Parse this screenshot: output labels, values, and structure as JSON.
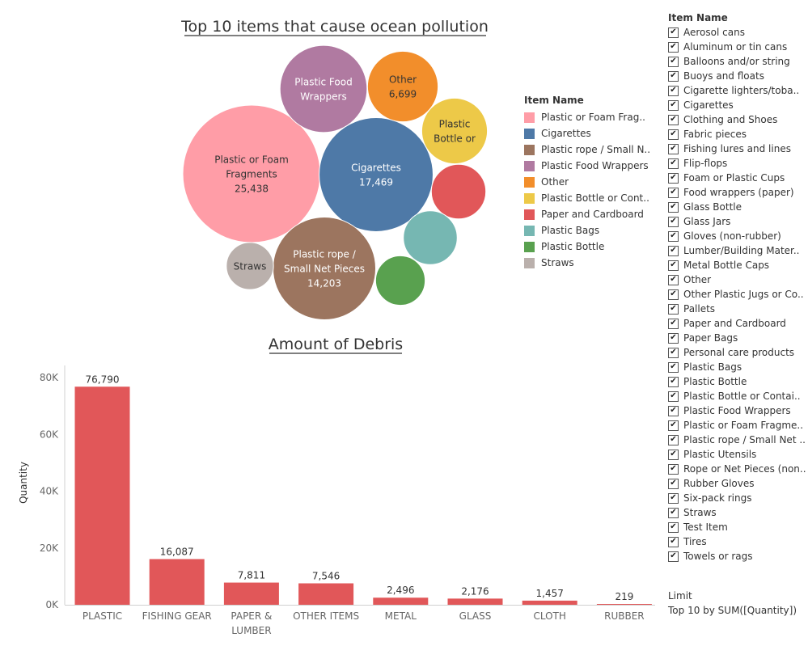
{
  "bubble_chart": {
    "title": "Top 10 items that cause ocean pollution",
    "legend_title": "Item Name",
    "legend": [
      {
        "label": "Plastic or Foam Frag..",
        "color": "#ff9da7"
      },
      {
        "label": "Cigarettes",
        "color": "#4e79a7"
      },
      {
        "label": "Plastic rope / Small N..",
        "color": "#9c755f"
      },
      {
        "label": "Plastic Food Wrappers",
        "color": "#b07aa1"
      },
      {
        "label": "Other",
        "color": "#f28e2b"
      },
      {
        "label": "Plastic Bottle or Cont..",
        "color": "#edc948"
      },
      {
        "label": "Paper and Cardboard",
        "color": "#e15759"
      },
      {
        "label": "Plastic Bags",
        "color": "#76b7b2"
      },
      {
        "label": "Plastic Bottle",
        "color": "#59a14f"
      },
      {
        "label": "Straws",
        "color": "#bab0ac"
      }
    ]
  },
  "filter": {
    "title": "Item Name",
    "check_glyph": "✔",
    "items": [
      "Aerosol cans",
      "Aluminum or tin cans",
      "Balloons and/or string",
      "Buoys and floats",
      "Cigarette lighters/toba..",
      "Cigarettes",
      "Clothing and Shoes",
      "Fabric pieces",
      "Fishing lures and lines",
      "Flip-flops",
      "Foam or Plastic Cups",
      "Food wrappers (paper)",
      "Glass Bottle",
      "Glass Jars",
      "Gloves (non-rubber)",
      "Lumber/Building Mater..",
      "Metal Bottle Caps",
      "Other",
      "Other Plastic Jugs or Co..",
      "Pallets",
      "Paper and Cardboard",
      "Paper Bags",
      "Personal care products",
      "Plastic Bags",
      "Plastic Bottle",
      "Plastic Bottle or Contai..",
      "Plastic Food Wrappers",
      "Plastic or Foam Fragme..",
      "Plastic rope / Small Net ..",
      "Plastic Utensils",
      "Rope or Net Pieces (non..",
      "Rubber Gloves",
      "Six-pack rings",
      "Straws",
      "Test Item",
      "Tires",
      "Towels or rags"
    ]
  },
  "limit": {
    "label": "Limit",
    "value": "Top 10 by SUM([Quantity])"
  },
  "chart_data": [
    {
      "type": "bubble",
      "title": "Top 10 items that cause ocean pollution",
      "items": [
        {
          "name": "Plastic or Foam Fragments",
          "lines": [
            "Plastic or Foam",
            "Fragments",
            "25,438"
          ],
          "value": 25438,
          "color": "#ff9da7",
          "text_color": "#333333"
        },
        {
          "name": "Cigarettes",
          "lines": [
            "Cigarettes",
            "17,469"
          ],
          "value": 17469,
          "color": "#4e79a7",
          "text_color": "#ffffff"
        },
        {
          "name": "Plastic rope / Small Net Pieces",
          "lines": [
            "Plastic rope /",
            "Small Net Pieces",
            "14,203"
          ],
          "value": 14203,
          "color": "#9c755f",
          "text_color": "#ffffff"
        },
        {
          "name": "Plastic Food Wrappers",
          "lines": [
            "Plastic Food",
            "Wrappers"
          ],
          "value": 10200,
          "color": "#b07aa1",
          "text_color": "#ffffff"
        },
        {
          "name": "Other",
          "lines": [
            "Other",
            "6,699"
          ],
          "value": 6699,
          "color": "#f28e2b",
          "text_color": "#333333"
        },
        {
          "name": "Plastic Bottle or Container",
          "lines": [
            "Plastic",
            "Bottle or"
          ],
          "value": 5800,
          "color": "#edc948",
          "text_color": "#333333"
        },
        {
          "name": "Paper and Cardboard",
          "lines": [],
          "value": 4000,
          "color": "#e15759",
          "text_color": "#333333"
        },
        {
          "name": "Plastic Bags",
          "lines": [],
          "value": 3900,
          "color": "#76b7b2",
          "text_color": "#333333"
        },
        {
          "name": "Plastic Bottle",
          "lines": [],
          "value": 3300,
          "color": "#59a14f",
          "text_color": "#333333"
        },
        {
          "name": "Straws",
          "lines": [
            "Straws"
          ],
          "value": 2990,
          "color": "#bab0ac",
          "text_color": "#333333"
        }
      ]
    },
    {
      "type": "bar",
      "title": "Amount of Debris",
      "ylabel": "Quantity",
      "xlabel": "",
      "ylim": [
        0,
        87000
      ],
      "yticks": [
        0,
        20000,
        40000,
        60000,
        80000
      ],
      "ytick_labels": [
        "0K",
        "20K",
        "40K",
        "60K",
        "80K"
      ],
      "bar_color": "#e15759",
      "categories": [
        [
          "PLASTIC"
        ],
        [
          "FISHING GEAR"
        ],
        [
          "PAPER &",
          "LUMBER"
        ],
        [
          "OTHER ITEMS"
        ],
        [
          "METAL"
        ],
        [
          "GLASS"
        ],
        [
          "CLOTH"
        ],
        [
          "RUBBER"
        ]
      ],
      "values": [
        76790,
        16087,
        7811,
        7546,
        2496,
        2176,
        1457,
        219
      ],
      "value_labels": [
        "76,790",
        "16,087",
        "7,811",
        "7,546",
        "2,496",
        "2,176",
        "1,457",
        "219"
      ]
    }
  ]
}
